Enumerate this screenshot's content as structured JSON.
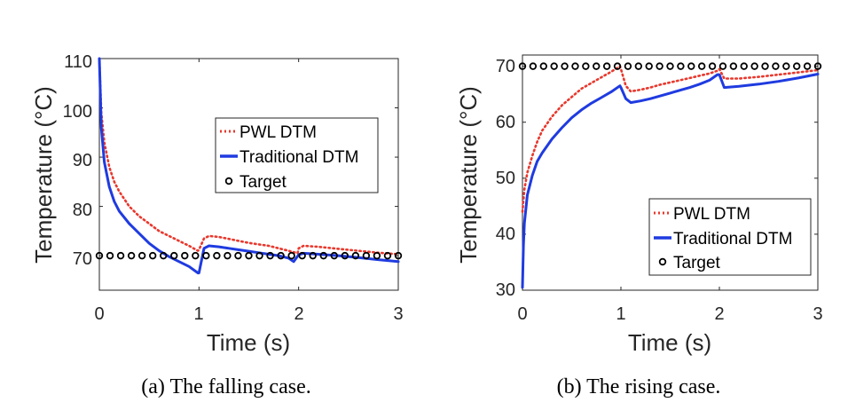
{
  "chart_data": [
    {
      "type": "line",
      "caption": "(a) The falling case.",
      "xlabel": "Time (s)",
      "ylabel": "Temperature (°C)",
      "xlim": [
        0,
        3
      ],
      "ylim": [
        63,
        110
      ],
      "xticks": [
        "0",
        "1",
        "2",
        "3"
      ],
      "yticks": [
        "70",
        "80",
        "90",
        "100",
        "110"
      ],
      "legend_position": "center-right",
      "series": [
        {
          "name": "PWL DTM",
          "color": "#e8382d",
          "style": "dotted",
          "x": [
            0,
            0.02,
            0.05,
            0.1,
            0.15,
            0.2,
            0.3,
            0.4,
            0.5,
            0.6,
            0.7,
            0.8,
            0.9,
            0.99,
            1.0,
            1.05,
            1.1,
            1.2,
            1.3,
            1.4,
            1.5,
            1.6,
            1.7,
            1.8,
            1.9,
            1.99,
            2.0,
            2.05,
            2.2,
            2.4,
            2.6,
            2.8,
            3.0
          ],
          "values": [
            110,
            99,
            93,
            88,
            85,
            83,
            80,
            78,
            76.5,
            75,
            74,
            73,
            72,
            71,
            71.2,
            73.5,
            74,
            73.8,
            73.4,
            73,
            72.6,
            72.3,
            72,
            71.5,
            71,
            70.5,
            71.5,
            72,
            71.8,
            71.4,
            71,
            70.6,
            70.3
          ]
        },
        {
          "name": "Traditional DTM",
          "color": "#1f3be0",
          "style": "solid",
          "x": [
            0,
            0.02,
            0.05,
            0.1,
            0.15,
            0.2,
            0.3,
            0.4,
            0.5,
            0.6,
            0.7,
            0.8,
            0.9,
            0.99,
            1.0,
            1.05,
            1.1,
            1.2,
            1.3,
            1.4,
            1.5,
            1.6,
            1.7,
            1.8,
            1.9,
            1.95,
            2.0,
            2.05,
            2.2,
            2.4,
            2.6,
            2.8,
            3.0
          ],
          "values": [
            110,
            96,
            89,
            84,
            81,
            79,
            76.5,
            74.5,
            72.5,
            71,
            69.8,
            68.8,
            67.8,
            66.5,
            66.5,
            71.5,
            72,
            71.8,
            71.5,
            71.2,
            70.9,
            70.6,
            70.3,
            70,
            69.5,
            68.8,
            70.2,
            70.5,
            70.3,
            70,
            69.6,
            69.2,
            68.8
          ]
        },
        {
          "name": "Target",
          "color": "#000000",
          "style": "markers",
          "value": 70
        }
      ]
    },
    {
      "type": "line",
      "caption": "(b) The rising case.",
      "xlabel": "Time (s)",
      "ylabel": "Temperature (°C)",
      "xlim": [
        0,
        3
      ],
      "ylim": [
        30,
        72
      ],
      "xticks": [
        "0",
        "1",
        "2",
        "3"
      ],
      "yticks": [
        "30",
        "40",
        "50",
        "60",
        "70"
      ],
      "legend_position": "bottom-right",
      "series": [
        {
          "name": "PWL DTM",
          "color": "#e8382d",
          "style": "dotted",
          "x": [
            0,
            0.02,
            0.05,
            0.1,
            0.15,
            0.2,
            0.3,
            0.4,
            0.5,
            0.6,
            0.7,
            0.8,
            0.9,
            0.99,
            1.0,
            1.05,
            1.1,
            1.2,
            1.3,
            1.4,
            1.5,
            1.6,
            1.7,
            1.8,
            1.9,
            1.98,
            2.0,
            2.05,
            2.2,
            2.4,
            2.6,
            2.8,
            3.0
          ],
          "values": [
            44,
            48,
            51,
            54,
            56.5,
            58.5,
            61,
            63,
            64.5,
            66,
            67,
            68,
            69,
            70,
            69.5,
            66.5,
            65.5,
            65.8,
            66.2,
            66.7,
            67.1,
            67.5,
            67.9,
            68.3,
            68.7,
            69.2,
            69.5,
            67.8,
            67.8,
            68.1,
            68.5,
            68.9,
            69.3
          ]
        },
        {
          "name": "Traditional DTM",
          "color": "#1f3be0",
          "style": "solid",
          "x": [
            0,
            0.01,
            0.02,
            0.05,
            0.1,
            0.15,
            0.2,
            0.3,
            0.4,
            0.5,
            0.6,
            0.7,
            0.8,
            0.9,
            0.99,
            1.0,
            1.05,
            1.1,
            1.2,
            1.3,
            1.4,
            1.5,
            1.6,
            1.7,
            1.8,
            1.9,
            1.98,
            2.0,
            2.05,
            2.2,
            2.4,
            2.6,
            2.8,
            3.0
          ],
          "values": [
            30.5,
            38,
            42,
            47,
            50.5,
            53,
            54.5,
            57,
            59,
            60.8,
            62.2,
            63.4,
            64.4,
            65.4,
            66.5,
            66.2,
            64.2,
            63.5,
            63.8,
            64.2,
            64.7,
            65.2,
            65.7,
            66.2,
            66.8,
            67.5,
            68.5,
            68.5,
            66.2,
            66.4,
            66.8,
            67.3,
            67.9,
            68.6
          ]
        },
        {
          "name": "Target",
          "color": "#000000",
          "style": "markers",
          "value": 70
        }
      ]
    }
  ]
}
